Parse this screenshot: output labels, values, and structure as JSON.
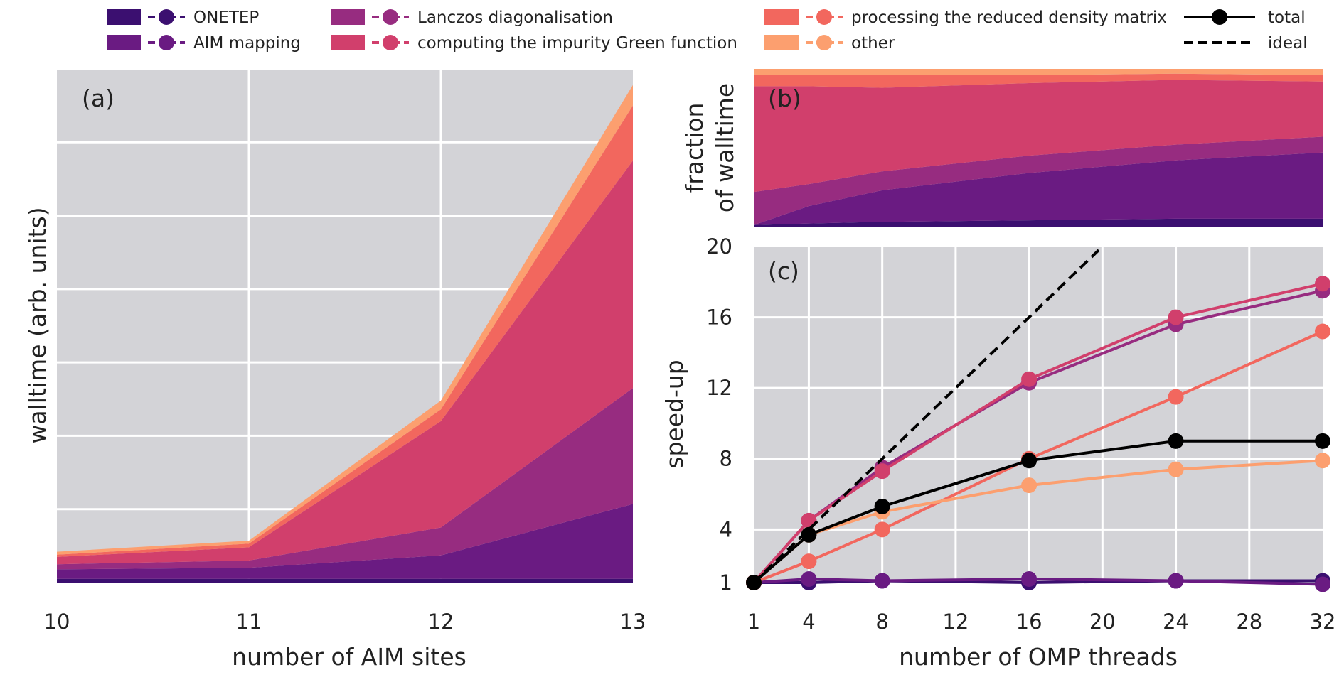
{
  "legend": [
    {
      "key": "onetep",
      "label": "ONETEP",
      "color": "#3b0f70"
    },
    {
      "key": "aim",
      "label": "AIM mapping",
      "color": "#6a1b82"
    },
    {
      "key": "lanczos",
      "label": "Lanczos diagonalisation",
      "color": "#972c80"
    },
    {
      "key": "green",
      "label": "computing the impurity Green function",
      "color": "#d13f6c"
    },
    {
      "key": "density",
      "label": "processing the reduced density matrix",
      "color": "#f2675e"
    },
    {
      "key": "other",
      "label": "other",
      "color": "#fc9f6f"
    },
    {
      "key": "total",
      "label": "total",
      "color": "#000000"
    },
    {
      "key": "ideal",
      "label": "ideal",
      "color": "#000000"
    }
  ],
  "chart_data": [
    {
      "panel": "(a)",
      "type": "area",
      "stacked": true,
      "xlabel": "number of AIM sites",
      "ylabel": "walltime (arb. units)",
      "x": [
        10,
        11,
        12,
        13
      ],
      "xticks": [
        "10",
        "11",
        "12",
        "13"
      ],
      "ylim": [
        0,
        7
      ],
      "grid": true,
      "series": [
        {
          "key": "onetep",
          "values": [
            0.05,
            0.05,
            0.05,
            0.05
          ]
        },
        {
          "key": "aim",
          "values": [
            0.13,
            0.15,
            0.32,
            1.02
          ]
        },
        {
          "key": "lanczos",
          "values": [
            0.07,
            0.1,
            0.38,
            1.58
          ]
        },
        {
          "key": "green",
          "values": [
            0.1,
            0.18,
            1.45,
            3.1
          ]
        },
        {
          "key": "density",
          "values": [
            0.03,
            0.05,
            0.16,
            0.75
          ]
        },
        {
          "key": "other",
          "values": [
            0.04,
            0.04,
            0.12,
            0.28
          ]
        }
      ]
    },
    {
      "panel": "(b)",
      "type": "area",
      "stacked": true,
      "normalized": true,
      "ylabel_line1": "fraction",
      "ylabel_line2": "of walltime",
      "x": [
        1,
        4,
        8,
        16,
        24,
        32
      ],
      "ylim": [
        0,
        1
      ],
      "grid": false,
      "series": [
        {
          "key": "onetep",
          "values": [
            0.01,
            0.02,
            0.03,
            0.04,
            0.05,
            0.05
          ]
        },
        {
          "key": "aim",
          "values": [
            0.0,
            0.11,
            0.2,
            0.3,
            0.37,
            0.42
          ]
        },
        {
          "key": "lanczos",
          "values": [
            0.21,
            0.14,
            0.12,
            0.11,
            0.1,
            0.1
          ]
        },
        {
          "key": "green",
          "values": [
            0.67,
            0.62,
            0.53,
            0.46,
            0.41,
            0.35
          ]
        },
        {
          "key": "density",
          "values": [
            0.07,
            0.07,
            0.08,
            0.05,
            0.04,
            0.04
          ]
        },
        {
          "key": "other",
          "values": [
            0.04,
            0.04,
            0.04,
            0.04,
            0.03,
            0.04
          ]
        }
      ]
    },
    {
      "panel": "(c)",
      "type": "line",
      "xlabel": "number of OMP threads",
      "ylabel": "speed-up",
      "xlim": [
        1,
        32
      ],
      "ylim": [
        1,
        20
      ],
      "xticks": [
        1,
        4,
        8,
        12,
        16,
        20,
        24,
        28,
        32
      ],
      "yticks": [
        1,
        4,
        8,
        12,
        16,
        20
      ],
      "grid": true,
      "series": [
        {
          "key": "onetep",
          "x": [
            1,
            4,
            8,
            16,
            24,
            32
          ],
          "y": [
            1.0,
            1.0,
            1.1,
            1.0,
            1.1,
            1.1
          ]
        },
        {
          "key": "aim",
          "x": [
            1,
            4,
            8,
            16,
            24,
            32
          ],
          "y": [
            1.0,
            1.2,
            1.1,
            1.2,
            1.1,
            0.9
          ]
        },
        {
          "key": "lanczos",
          "x": [
            1,
            4,
            8,
            16,
            24,
            32
          ],
          "y": [
            1.0,
            4.5,
            7.5,
            12.3,
            15.6,
            17.5
          ]
        },
        {
          "key": "green",
          "x": [
            1,
            4,
            8,
            16,
            24,
            32
          ],
          "y": [
            1.0,
            4.5,
            7.3,
            12.5,
            16.0,
            17.9
          ]
        },
        {
          "key": "density",
          "x": [
            1,
            4,
            8,
            16,
            24,
            32
          ],
          "y": [
            1.0,
            2.2,
            4.0,
            8.0,
            11.5,
            15.2
          ]
        },
        {
          "key": "other",
          "x": [
            1,
            4,
            8,
            16,
            24,
            32
          ],
          "y": [
            1.0,
            3.7,
            5.0,
            6.5,
            7.4,
            7.9
          ]
        },
        {
          "key": "total",
          "x": [
            1,
            4,
            8,
            16,
            24,
            32
          ],
          "y": [
            1.0,
            3.7,
            5.3,
            7.9,
            9.0,
            9.0
          ]
        },
        {
          "key": "ideal",
          "x": [
            1,
            20
          ],
          "y": [
            1,
            20
          ],
          "dashed": true
        }
      ]
    }
  ]
}
